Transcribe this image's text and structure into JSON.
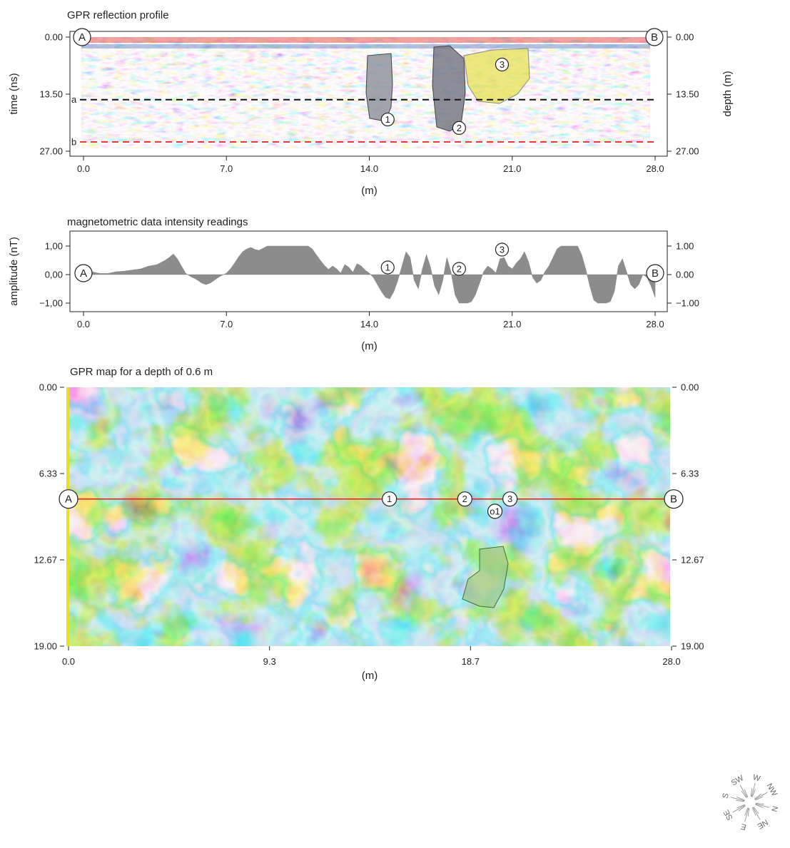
{
  "chart_data": [
    {
      "type": "heatmap",
      "title": "GPR reflection profile",
      "xlabel": "(m)",
      "ylabel": "time (ns)",
      "ylabel_right": "depth (m)",
      "xlim": [
        0,
        28
      ],
      "ylim": [
        0,
        27
      ],
      "xticks": [
        "0.0",
        "7.0",
        "14.0",
        "21.0",
        "28.0"
      ],
      "yticks": [
        "0.00",
        "13.50",
        "27.00"
      ],
      "yticks_right": [
        "0.00",
        "13.50",
        "27.00"
      ],
      "endpoints": [
        "A",
        "B"
      ],
      "reference_lines": [
        {
          "label": "a",
          "y": 14.8,
          "color": "#111111",
          "style": "dashed"
        },
        {
          "label": "b",
          "y": 24.8,
          "color": "#e83a3a",
          "style": "dashed"
        }
      ],
      "anomalies": [
        {
          "label": "1",
          "x": 14.9,
          "y": 19.5,
          "fill": "#8a8f9a"
        },
        {
          "label": "2",
          "x": 18.4,
          "y": 21.5,
          "fill": "#6f7280"
        },
        {
          "label": "3",
          "x": 20.5,
          "y": 6.5,
          "fill": "#e5e04a"
        }
      ],
      "colormap": [
        "#1a3f9e",
        "#9fd4ee",
        "#ffffff",
        "#f6b7a4",
        "#e0302c"
      ]
    },
    {
      "type": "area",
      "title": "magnetometric data intensity readings",
      "xlabel": "(m)",
      "ylabel": "amplitude (nT)",
      "xlim": [
        0,
        28
      ],
      "ylim": [
        -1.3,
        1.3
      ],
      "xticks": [
        "0.0",
        "7.0",
        "14.0",
        "21.0",
        "28.0"
      ],
      "yticks": [
        "1,00",
        "0,00",
        "−1,00"
      ],
      "yticks_right": [
        "1.00",
        "0.00",
        "−1.00"
      ],
      "endpoints": [
        "A",
        "B"
      ],
      "fill_color": "#8c8c8c",
      "series": [
        {
          "x": [
            0.0,
            0.4,
            0.8,
            1.2,
            1.6,
            2.0,
            2.4,
            2.8,
            3.2,
            3.6,
            4.0,
            4.2,
            4.4,
            4.6,
            4.8,
            5.0,
            5.2,
            5.4,
            5.6,
            5.8,
            6.0,
            6.2,
            6.4,
            6.6,
            6.8,
            7.0,
            7.2,
            7.4,
            7.6,
            7.8,
            8.0,
            8.2,
            8.4,
            8.6,
            8.8,
            9.0,
            9.2,
            9.4,
            9.6,
            9.8,
            10.0,
            10.2,
            10.4,
            10.6,
            10.8,
            11.0,
            11.2,
            11.4,
            11.6,
            11.8,
            12.0,
            12.2,
            12.4,
            12.6,
            12.8,
            13.0,
            13.2,
            13.4,
            13.6,
            13.8,
            14.0,
            14.2,
            14.4,
            14.6,
            14.8,
            15.0,
            15.2,
            15.4,
            15.6,
            15.8,
            16.0,
            16.2,
            16.4,
            16.6,
            16.8,
            17.0,
            17.2,
            17.4,
            17.6,
            17.8,
            18.0,
            18.2,
            18.4,
            18.6,
            18.8,
            19.0,
            19.2,
            19.4,
            19.6,
            19.8,
            20.0,
            20.2,
            20.4,
            20.6,
            20.8,
            21.0,
            21.2,
            21.4,
            21.6,
            21.8,
            22.0,
            22.2,
            22.4,
            22.6,
            22.8,
            23.0,
            23.2,
            23.4,
            23.6,
            23.8,
            24.0,
            24.2,
            24.4,
            24.6,
            24.8,
            25.0,
            25.2,
            25.4,
            25.6,
            25.8,
            26.0,
            26.2,
            26.4,
            26.6,
            26.8,
            27.0,
            27.2,
            27.4,
            27.6,
            27.8,
            28.0
          ],
          "values": [
            0.2,
            0.1,
            0.04,
            0.04,
            0.1,
            0.12,
            0.16,
            0.2,
            0.3,
            0.35,
            0.5,
            0.6,
            0.72,
            0.55,
            0.3,
            0.05,
            -0.05,
            -0.12,
            -0.2,
            -0.3,
            -0.35,
            -0.3,
            -0.2,
            -0.1,
            -0.02,
            0.05,
            0.2,
            0.4,
            0.62,
            0.8,
            0.9,
            0.95,
            0.88,
            0.85,
            0.92,
            1.0,
            1.0,
            1.0,
            1.0,
            1.0,
            1.0,
            1.0,
            1.0,
            1.0,
            1.0,
            1.0,
            0.9,
            0.7,
            0.5,
            0.32,
            0.18,
            0.3,
            0.2,
            0.05,
            0.35,
            0.25,
            0.08,
            0.38,
            0.3,
            0.15,
            0.05,
            -0.1,
            -0.35,
            -0.6,
            -0.8,
            -0.85,
            -0.6,
            -0.2,
            0.3,
            0.8,
            0.6,
            -0.2,
            -0.5,
            0.2,
            0.7,
            0.25,
            -0.4,
            -0.7,
            -0.2,
            0.6,
            0.1,
            -0.7,
            -1.0,
            -1.0,
            -1.0,
            -0.95,
            -0.7,
            -0.3,
            0.1,
            0.3,
            0.2,
            0.05,
            0.55,
            0.6,
            0.3,
            0.2,
            0.4,
            0.55,
            0.8,
            0.45,
            -0.1,
            -0.3,
            -0.2,
            0.1,
            0.3,
            0.6,
            0.9,
            1.0,
            1.0,
            1.0,
            1.0,
            1.0,
            0.7,
            0.2,
            -0.4,
            -0.9,
            -1.0,
            -1.0,
            -1.0,
            -0.95,
            -0.6,
            0.3,
            0.55,
            0.1,
            -0.35,
            -0.5,
            -0.35,
            0.0,
            -0.1,
            -0.4,
            -0.8
          ]
        }
      ],
      "anomalies": [
        {
          "label": "1",
          "x": 14.9,
          "y": 0.25
        },
        {
          "label": "2",
          "x": 18.4,
          "y": 0.2
        },
        {
          "label": "3",
          "x": 20.5,
          "y": 0.75
        }
      ]
    },
    {
      "type": "heatmap",
      "title": "GPR map for a depth of 0.6 m",
      "xlabel": "(m)",
      "xlim": [
        0,
        28
      ],
      "ylim": [
        0,
        19
      ],
      "xticks": [
        "0.0",
        "9.3",
        "18.7",
        "28.0"
      ],
      "yticks": [
        "0.00",
        "6.33",
        "12.67",
        "19.00"
      ],
      "yticks_right": [
        "0.00",
        "6.33",
        "12.67",
        "19.00"
      ],
      "endpoints": [
        "A",
        "B"
      ],
      "profile_line": {
        "y": 8.2,
        "color": "#e02525"
      },
      "anomalies": [
        {
          "label": "1",
          "x": 14.9,
          "y": 8.2
        },
        {
          "label": "2",
          "x": 18.4,
          "y": 8.2
        },
        {
          "label": "3",
          "x": 20.5,
          "y": 8.2
        },
        {
          "label": "o1",
          "x": 19.8,
          "y": 9.1,
          "fill": "#9cc98a"
        }
      ],
      "colormap": [
        "#1d4fa6",
        "#4aa3d8",
        "#a9ddea",
        "#4fb848",
        "#f2e320",
        "#f08a1c",
        "#e8231e"
      ]
    }
  ],
  "compass": [
    "SW",
    "W",
    "NW",
    "N",
    "NE",
    "E",
    "SE",
    "S"
  ]
}
